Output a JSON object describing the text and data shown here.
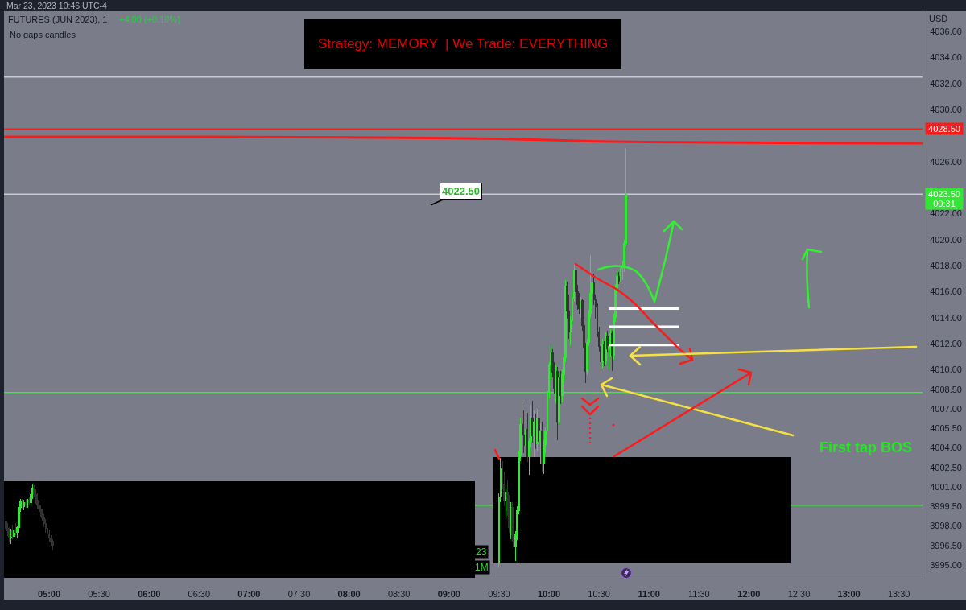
{
  "chart_data": {
    "type": "candlestick",
    "title": "FUTURES (JUN 2023), 1",
    "ylabel": "USD",
    "xlim": [
      4.549,
      13.736
    ],
    "ylim": [
      3993.95,
      4037.55
    ],
    "xticks": [
      {
        "value": 5,
        "label": "05:00"
      },
      {
        "value": 5.5,
        "label": "05:30"
      },
      {
        "value": 6,
        "label": "06:00"
      },
      {
        "value": 6.5,
        "label": "06:30"
      },
      {
        "value": 7,
        "label": "07:00"
      },
      {
        "value": 7.5,
        "label": "07:30"
      },
      {
        "value": 8,
        "label": "08:00"
      },
      {
        "value": 8.5,
        "label": "08:30"
      },
      {
        "value": 9,
        "label": "09:00"
      },
      {
        "value": 9.5,
        "label": "09:30"
      },
      {
        "value": 10,
        "label": "10:00"
      },
      {
        "value": 10.5,
        "label": "10:30"
      },
      {
        "value": 11,
        "label": "11:00"
      },
      {
        "value": 11.5,
        "label": "11:30"
      },
      {
        "value": 12,
        "label": "12:00"
      },
      {
        "value": 12.5,
        "label": "12:30"
      },
      {
        "value": 13,
        "label": "13:00"
      },
      {
        "value": 13.5,
        "label": "13:30"
      }
    ],
    "yticks": [
      {
        "value": 4036,
        "label": "4036.00"
      },
      {
        "value": 4034,
        "label": "4034.00"
      },
      {
        "value": 4032,
        "label": "4032.00"
      },
      {
        "value": 4030,
        "label": "4030.00"
      },
      {
        "value": 4026,
        "label": "4026.00"
      },
      {
        "value": 4022,
        "label": "4022.00"
      },
      {
        "value": 4020,
        "label": "4020.00"
      },
      {
        "value": 4018,
        "label": "4018.00"
      },
      {
        "value": 4016,
        "label": "4016.00"
      },
      {
        "value": 4014,
        "label": "4014.00"
      },
      {
        "value": 4012,
        "label": "4012.00"
      },
      {
        "value": 4010,
        "label": "4010.00"
      },
      {
        "value": 4008.5,
        "label": "4008.50"
      },
      {
        "value": 4007,
        "label": "4007.00"
      },
      {
        "value": 4005.5,
        "label": "4005.50"
      },
      {
        "value": 4004,
        "label": "4004.00"
      },
      {
        "value": 4002.5,
        "label": "4002.50"
      },
      {
        "value": 4001,
        "label": "4001.00"
      },
      {
        "value": 3999.5,
        "label": "3999.50"
      },
      {
        "value": 3998,
        "label": "3998.00"
      },
      {
        "value": 3996.5,
        "label": "3996.50"
      },
      {
        "value": 3995,
        "label": "3995.00"
      }
    ],
    "series": [
      {
        "type": "line",
        "color": "#ff1a1a",
        "x": [
          4.549,
          6.5,
          8,
          9,
          9.5,
          10,
          10.5,
          11,
          12,
          13.736
        ],
        "values": [
          4027.9,
          4027.9,
          4027.85,
          4027.8,
          4027.75,
          4027.65,
          4027.55,
          4027.5,
          4027.45,
          4027.4
        ]
      },
      {
        "type": "line",
        "color": "#ffffff",
        "x": [
          10.6,
          11.3
        ],
        "values": [
          4014.7,
          4014.7
        ]
      },
      {
        "type": "line",
        "color": "#ffffff",
        "x": [
          10.6,
          11.3
        ],
        "values": [
          4013.3,
          4013.3
        ]
      },
      {
        "type": "line",
        "color": "#ffffff",
        "x": [
          10.6,
          11.3
        ],
        "values": [
          4011.9,
          4011.9
        ]
      },
      {
        "type": "candlestick",
        "x": [
          4.5667,
          4.5833,
          4.6,
          4.6167,
          4.6333,
          4.65,
          4.6667,
          4.6833,
          4.7,
          4.7167,
          4.7333,
          4.75,
          4.7667,
          4.7833,
          4.8,
          4.8167,
          4.8333,
          4.85,
          4.8667,
          4.8833,
          4.9,
          4.9167,
          4.9333,
          4.95,
          4.9667,
          4.9833,
          5,
          5.0167,
          5.0333,
          9.5,
          9.5167,
          9.5333,
          9.55,
          9.5667,
          9.5833,
          9.6,
          9.6167,
          9.6333,
          9.65,
          9.6667,
          9.6833,
          9.7,
          9.7167,
          9.7333,
          9.75,
          9.7667,
          9.7833,
          9.8,
          9.8167,
          9.8333,
          9.85,
          9.8667,
          9.8833,
          9.9,
          9.9167,
          9.9333,
          9.95,
          9.9667,
          9.9833,
          10,
          10.0167,
          10.0333,
          10.05,
          10.0667,
          10.0833,
          10.1,
          10.1167,
          10.1333,
          10.15,
          10.1667,
          10.1833,
          10.2,
          10.2167,
          10.2333,
          10.25,
          10.2667,
          10.2833,
          10.3,
          10.3167,
          10.3333,
          10.35,
          10.3667,
          10.3833,
          10.4,
          10.4167,
          10.4333,
          10.45,
          10.4667,
          10.4833,
          10.5,
          10.5167,
          10.5333,
          10.55,
          10.5667,
          10.5833,
          10.6,
          10.6167,
          10.6333,
          10.65,
          10.6667,
          10.6833,
          10.7,
          10.7167,
          10.7333,
          10.75,
          10.7667
        ],
        "ohlc": [
          [
            3998.3,
            3998.6,
            3997.5,
            3997.8
          ],
          [
            3997.8,
            3998.2,
            3997.2,
            3997.6
          ],
          [
            3997.6,
            3997.9,
            3996.8,
            3997.1
          ],
          [
            3997.1,
            3997.8,
            3996.6,
            3997.6
          ],
          [
            3997.6,
            3998.1,
            3997.0,
            3997.2
          ],
          [
            3997.2,
            3997.9,
            3996.9,
            3997.7
          ],
          [
            3997.7,
            3998.2,
            3997.3,
            3997.5
          ],
          [
            3997.5,
            3998.0,
            3997.1,
            3997.9
          ],
          [
            3997.9,
            3999.6,
            3997.7,
            3999.4
          ],
          [
            3999.4,
            4000.1,
            3999.1,
            3999.9
          ],
          [
            3999.9,
            4000.1,
            3999.3,
            3999.5
          ],
          [
            3999.5,
            4000.0,
            3999.2,
            3999.8
          ],
          [
            3999.8,
            4000.1,
            3999.4,
            3999.6
          ],
          [
            3999.6,
            4000.1,
            3999.4,
            4000.0
          ],
          [
            4000.0,
            4000.2,
            3999.6,
            3999.8
          ],
          [
            3999.8,
            4000.6,
            3999.6,
            4000.4
          ],
          [
            4000.4,
            4001.2,
            4000.1,
            4000.9
          ],
          [
            4000.9,
            4001.1,
            4000.2,
            4000.4
          ],
          [
            4000.4,
            4000.8,
            3999.7,
            4000.0
          ],
          [
            4000.0,
            4000.5,
            3999.3,
            3999.6
          ],
          [
            3999.6,
            3999.9,
            3999.0,
            3999.3
          ],
          [
            3999.3,
            3999.6,
            3998.7,
            3999.1
          ],
          [
            3999.1,
            3999.3,
            3998.4,
            3998.6
          ],
          [
            3998.6,
            3998.9,
            3997.9,
            3998.2
          ],
          [
            3998.2,
            3998.5,
            3997.5,
            3997.8
          ],
          [
            3997.8,
            3998.0,
            3997.2,
            3997.4
          ],
          [
            3997.4,
            3997.7,
            3996.8,
            3997.1
          ],
          [
            3997.1,
            3997.3,
            3996.5,
            3996.8
          ],
          [
            3996.8,
            3997.0,
            3996.2,
            3996.5
          ],
          [
            3995.2,
            4000.5,
            3994.8,
            4000.2
          ],
          [
            4000.2,
            4003.2,
            3999.8,
            4002.4
          ],
          [
            4002.4,
            4003.0,
            4000.8,
            4001.2
          ],
          [
            4001.2,
            4002.2,
            3999.5,
            3999.9
          ],
          [
            3999.9,
            4001.0,
            3998.6,
            4000.6
          ],
          [
            4000.6,
            4001.5,
            3998.8,
            3999.2
          ],
          [
            3999.2,
            4000.4,
            3997.5,
            3997.9
          ],
          [
            3997.9,
            3999.8,
            3997.0,
            3999.4
          ],
          [
            3999.4,
            3999.8,
            3996.8,
            3997.3
          ],
          [
            3997.3,
            3998.2,
            3996.0,
            3996.4
          ],
          [
            3996.4,
            3997.6,
            3995.3,
            3997.3
          ],
          [
            3997.3,
            3999.5,
            3996.9,
            3999.2
          ],
          [
            3999.2,
            4003.8,
            3998.9,
            4003.4
          ],
          [
            4003.4,
            4006.3,
            4003.0,
            4005.8
          ],
          [
            4005.8,
            4007.6,
            4004.9,
            4005.0
          ],
          [
            4005.0,
            4006.9,
            4003.6,
            4004.2
          ],
          [
            4004.2,
            4005.8,
            4002.6,
            4005.4
          ],
          [
            4005.4,
            4006.7,
            4002.9,
            4003.3
          ],
          [
            4003.3,
            4004.8,
            4001.9,
            4004.5
          ],
          [
            4004.5,
            4007.3,
            4004.0,
            4006.3
          ],
          [
            4006.3,
            4007.6,
            4004.4,
            4004.9
          ],
          [
            4004.9,
            4006.9,
            4003.3,
            4006.0
          ],
          [
            4006.0,
            4006.6,
            4003.9,
            4004.3
          ],
          [
            4004.3,
            4007.0,
            4003.7,
            4006.2
          ],
          [
            4006.2,
            4006.8,
            4004.1,
            4004.5
          ],
          [
            4004.5,
            4005.9,
            4002.8,
            4005.3
          ],
          [
            4005.3,
            4006.0,
            4002.2,
            4002.8
          ],
          [
            4002.8,
            4004.6,
            4002.0,
            4004.2
          ],
          [
            4004.2,
            4005.6,
            4003.6,
            4005.3
          ],
          [
            4005.3,
            4008.6,
            4005.0,
            4008.3
          ],
          [
            4008.3,
            4010.6,
            4007.8,
            4010.4
          ],
          [
            4010.4,
            4011.9,
            4009.3,
            4011.3
          ],
          [
            4011.3,
            4011.6,
            4009.4,
            4009.8
          ],
          [
            4009.8,
            4010.6,
            4008.2,
            4008.6
          ],
          [
            4008.6,
            4010.4,
            4007.4,
            4009.9
          ],
          [
            4009.9,
            4010.2,
            4004.6,
            4006.0
          ],
          [
            4006.0,
            4009.8,
            4005.8,
            4009.4
          ],
          [
            4009.4,
            4009.9,
            4007.4,
            4008.0
          ],
          [
            4008.0,
            4010.0,
            4007.5,
            4009.6
          ],
          [
            4009.6,
            4011.2,
            4009.0,
            4010.9
          ],
          [
            4010.9,
            4016.9,
            4010.6,
            4016.4
          ],
          [
            4016.4,
            4016.8,
            4013.9,
            4014.5
          ],
          [
            4014.5,
            4015.8,
            4012.4,
            4012.9
          ],
          [
            4012.9,
            4014.1,
            4011.9,
            4013.8
          ],
          [
            4013.8,
            4015.9,
            4013.3,
            4015.5
          ],
          [
            4015.5,
            4018.1,
            4015.2,
            4017.6
          ],
          [
            4017.6,
            4017.9,
            4015.6,
            4016.0
          ],
          [
            4016.0,
            4016.5,
            4014.6,
            4015.0
          ],
          [
            4015.0,
            4015.9,
            4014.3,
            4014.7
          ],
          [
            4014.7,
            4015.6,
            4014.0,
            4015.3
          ],
          [
            4015.3,
            4015.5,
            4013.0,
            4013.4
          ],
          [
            4013.4,
            4013.8,
            4011.3,
            4011.7
          ],
          [
            4011.7,
            4012.1,
            4009.0,
            4009.9
          ],
          [
            4009.9,
            4012.4,
            4009.6,
            4012.1
          ],
          [
            4012.1,
            4014.6,
            4011.8,
            4014.3
          ],
          [
            4014.3,
            4018.8,
            4014.0,
            4015.9
          ],
          [
            4015.9,
            4017.0,
            4015.4,
            4016.7
          ],
          [
            4016.7,
            4017.4,
            4015.0,
            4015.4
          ],
          [
            4015.4,
            4015.8,
            4013.9,
            4014.8
          ],
          [
            4014.8,
            4015.1,
            4012.5,
            4012.9
          ],
          [
            4012.9,
            4013.3,
            4011.4,
            4011.8
          ],
          [
            4011.8,
            4012.6,
            4009.9,
            4010.6
          ],
          [
            4010.6,
            4012.4,
            4010.1,
            4011.9
          ],
          [
            4011.9,
            4012.2,
            4010.3,
            4010.7
          ],
          [
            4010.7,
            4012.9,
            4010.4,
            4012.6
          ],
          [
            4012.6,
            4013.0,
            4011.3,
            4011.6
          ],
          [
            4011.6,
            4012.5,
            4010.0,
            4011.8
          ],
          [
            4011.8,
            4013.1,
            4011.0,
            4012.8
          ],
          [
            4012.8,
            4013.0,
            4009.9,
            4011.1
          ],
          [
            4011.1,
            4014.3,
            4010.8,
            4014.0
          ],
          [
            4014.0,
            4016.6,
            4013.7,
            4016.3
          ],
          [
            4016.3,
            4017.6,
            4015.9,
            4017.2
          ],
          [
            4017.2,
            4017.5,
            4016.6,
            4016.8
          ],
          [
            4016.8,
            4018.1,
            4016.2,
            4017.8
          ],
          [
            4017.8,
            4018.4,
            4016.9,
            4018.0
          ],
          [
            4018.0,
            4020.0,
            4017.5,
            4019.7
          ],
          [
            4019.7,
            4027.0,
            4019.5,
            4023.5
          ]
        ],
        "colors": [
          "#333333",
          "#333333",
          "#333333",
          "#33e633",
          "#333333",
          "#33e633",
          "#333333",
          "#33e633",
          "#33e633",
          "#33e633",
          "#333333",
          "#33e633",
          "#333333",
          "#33e633",
          "#333333",
          "#33e633",
          "#33e633",
          "#333333",
          "#333333",
          "#333333",
          "#333333",
          "#333333",
          "#333333",
          "#333333",
          "#333333",
          "#333333",
          "#333333",
          "#333333",
          "#333333",
          "#33e633",
          "#33e633",
          "#333333",
          "#333333",
          "#33e633",
          "#333333",
          "#333333",
          "#33e633",
          "#333333",
          "#333333",
          "#33e633",
          "#33e633",
          "#33e633",
          "#33e633",
          "#333333",
          "#333333",
          "#33e633",
          "#333333",
          "#33e633",
          "#33e633",
          "#333333",
          "#33e633",
          "#333333",
          "#33e633",
          "#333333",
          "#33e633",
          "#333333",
          "#33e633",
          "#33e633",
          "#33e633",
          "#33e633",
          "#33e633",
          "#333333",
          "#333333",
          "#33e633",
          "#333333",
          "#33e633",
          "#333333",
          "#33e633",
          "#33e633",
          "#33e633",
          "#333333",
          "#333333",
          "#33e633",
          "#33e633",
          "#33e633",
          "#333333",
          "#333333",
          "#333333",
          "#33e633",
          "#333333",
          "#333333",
          "#333333",
          "#33e633",
          "#33e633",
          "#33e633",
          "#33e633",
          "#333333",
          "#333333",
          "#333333",
          "#333333",
          "#333333",
          "#33e633",
          "#333333",
          "#33e633",
          "#333333",
          "#33e633",
          "#33e633",
          "#333333",
          "#33e633",
          "#33e633",
          "#33e633",
          "#333333",
          "#33e633",
          "#33e633",
          "#33e633",
          "#33e633"
        ]
      }
    ],
    "ref_lines": [
      {
        "axis": "y",
        "value": 4032.5,
        "color": "#c8cad0"
      },
      {
        "axis": "y",
        "value": 4028.5,
        "label": "4028.50",
        "color": "#ff1a1a"
      },
      {
        "axis": "y",
        "value": 4023.5,
        "label": "4023.50",
        "color": "#c8cad0"
      },
      {
        "axis": "y",
        "value": 4008.25,
        "color": "#1aff1a"
      },
      {
        "axis": "y",
        "value": 3999.6,
        "color": "#1aff1a"
      }
    ],
    "annotations": [
      "Mar 23, 2023 10:46 UTC-4",
      "+4.00 (+0.10%)",
      "No gaps candles",
      "Strategy: MEMORY  | We Trade: EVERYTHING",
      "First tap BOS",
      "23",
      "1M",
      "00:31",
      "4022.50"
    ]
  }
}
